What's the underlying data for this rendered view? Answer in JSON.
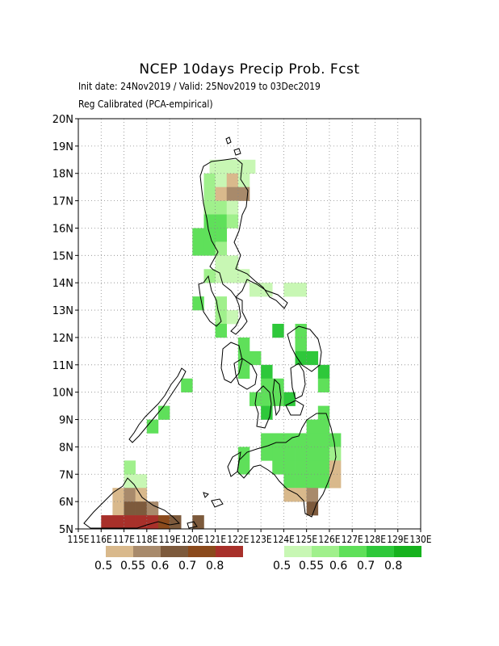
{
  "title": "NCEP 10days Precip Prob. Fcst",
  "subtitle1": "Init date: 24Nov2019 / Valid: 25Nov2019 to 03Dec2019",
  "subtitle2": "Reg Calibrated (PCA-empirical)",
  "lat_labels": [
    "5N",
    "6N",
    "7N",
    "8N",
    "9N",
    "10N",
    "11N",
    "12N",
    "13N",
    "14N",
    "15N",
    "16N",
    "17N",
    "18N",
    "19N",
    "20N"
  ],
  "lon_labels": [
    "115E",
    "116E",
    "117E",
    "118E",
    "119E",
    "120E",
    "121E",
    "122E",
    "123E",
    "124E",
    "125E",
    "126E",
    "127E",
    "128E",
    "129E",
    "130E"
  ],
  "dry_legend": {
    "colors": [
      "#d9b98c",
      "#a88a6b",
      "#7d5a3c",
      "#8b4a1c",
      "#a8302a"
    ],
    "labels": [
      "0.5",
      "0.55",
      "0.6",
      "0.7",
      "0.8"
    ]
  },
  "wet_legend": {
    "colors": [
      "#c8f7b4",
      "#a0f08c",
      "#5fe05a",
      "#2ec83a",
      "#16b21e"
    ],
    "labels": [
      "0.5",
      "0.55",
      "0.6",
      "0.7",
      "0.8"
    ]
  },
  "chart_data": {
    "type": "heatmap",
    "x_range": [
      115,
      130
    ],
    "y_range": [
      5,
      20
    ],
    "cell_size_deg": 0.5,
    "cells": [
      [
        122.5,
        18.25,
        "w1"
      ],
      [
        122.0,
        18.25,
        "w1"
      ],
      [
        121.5,
        18.25,
        "w1"
      ],
      [
        121.0,
        18.25,
        "w1"
      ],
      [
        120.75,
        17.75,
        "w2"
      ],
      [
        121.25,
        17.75,
        "w1"
      ],
      [
        121.75,
        17.75,
        "d1"
      ],
      [
        122.25,
        17.75,
        "w1"
      ],
      [
        120.75,
        17.25,
        "w2"
      ],
      [
        121.25,
        17.25,
        "d1"
      ],
      [
        121.75,
        17.25,
        "d2"
      ],
      [
        122.25,
        17.25,
        "d2"
      ],
      [
        120.75,
        16.75,
        "w2"
      ],
      [
        121.25,
        16.75,
        "w2"
      ],
      [
        121.75,
        16.75,
        "w1"
      ],
      [
        120.75,
        16.25,
        "w3"
      ],
      [
        121.25,
        16.25,
        "w3"
      ],
      [
        121.75,
        16.25,
        "w2"
      ],
      [
        120.25,
        15.75,
        "w3"
      ],
      [
        120.75,
        15.75,
        "w3"
      ],
      [
        121.25,
        15.75,
        "w3"
      ],
      [
        120.25,
        15.25,
        "w3"
      ],
      [
        120.75,
        15.25,
        "w3"
      ],
      [
        121.25,
        15.25,
        "w2"
      ],
      [
        121.25,
        14.75,
        "w1"
      ],
      [
        121.75,
        14.75,
        "w1"
      ],
      [
        121.25,
        14.25,
        "w1"
      ],
      [
        121.75,
        14.25,
        "w1"
      ],
      [
        122.25,
        14.25,
        "w1"
      ],
      [
        120.75,
        14.25,
        "w2"
      ],
      [
        122.75,
        13.75,
        "w1"
      ],
      [
        123.25,
        13.75,
        "w1"
      ],
      [
        124.25,
        13.75,
        "w1"
      ],
      [
        124.75,
        13.75,
        "w1"
      ],
      [
        120.25,
        13.25,
        "w3"
      ],
      [
        121.25,
        13.25,
        "w2"
      ],
      [
        121.25,
        12.75,
        "w2"
      ],
      [
        121.75,
        12.75,
        "w1"
      ],
      [
        121.25,
        12.25,
        "w3"
      ],
      [
        123.75,
        12.25,
        "w4"
      ],
      [
        124.75,
        12.25,
        "w3"
      ],
      [
        122.25,
        11.75,
        "w3"
      ],
      [
        124.75,
        11.75,
        "w3"
      ],
      [
        122.25,
        11.25,
        "w3"
      ],
      [
        122.75,
        11.25,
        "w3"
      ],
      [
        124.75,
        11.25,
        "w4"
      ],
      [
        125.25,
        11.25,
        "w4"
      ],
      [
        122.25,
        10.75,
        "w3"
      ],
      [
        123.25,
        10.75,
        "w4"
      ],
      [
        125.75,
        10.75,
        "w4"
      ],
      [
        123.25,
        10.25,
        "w3"
      ],
      [
        123.75,
        10.25,
        "w3"
      ],
      [
        125.75,
        10.25,
        "w3"
      ],
      [
        122.75,
        9.75,
        "w3"
      ],
      [
        123.25,
        9.75,
        "w3"
      ],
      [
        123.75,
        9.75,
        "w3"
      ],
      [
        124.25,
        9.75,
        "w4"
      ],
      [
        119.75,
        10.25,
        "w3"
      ],
      [
        118.75,
        9.25,
        "w3"
      ],
      [
        118.25,
        8.75,
        "w3"
      ],
      [
        123.25,
        9.25,
        "w4"
      ],
      [
        125.75,
        9.25,
        "w3"
      ],
      [
        125.25,
        8.75,
        "w3"
      ],
      [
        125.75,
        8.75,
        "w3"
      ],
      [
        123.25,
        8.25,
        "w3"
      ],
      [
        123.75,
        8.25,
        "w3"
      ],
      [
        124.25,
        8.25,
        "w3"
      ],
      [
        124.75,
        8.25,
        "w3"
      ],
      [
        125.25,
        8.25,
        "w3"
      ],
      [
        125.75,
        8.25,
        "w3"
      ],
      [
        126.25,
        8.25,
        "w3"
      ],
      [
        122.25,
        7.75,
        "w3"
      ],
      [
        123.25,
        7.75,
        "w3"
      ],
      [
        123.75,
        7.75,
        "w3"
      ],
      [
        124.25,
        7.75,
        "w3"
      ],
      [
        124.75,
        7.75,
        "w3"
      ],
      [
        125.25,
        7.75,
        "w3"
      ],
      [
        125.75,
        7.75,
        "w3"
      ],
      [
        126.25,
        7.75,
        "w2"
      ],
      [
        122.25,
        7.25,
        "w3"
      ],
      [
        123.75,
        7.25,
        "w3"
      ],
      [
        124.25,
        7.25,
        "w3"
      ],
      [
        124.75,
        7.25,
        "w3"
      ],
      [
        125.25,
        7.25,
        "w3"
      ],
      [
        125.75,
        7.25,
        "w3"
      ],
      [
        126.25,
        7.25,
        "d1"
      ],
      [
        124.25,
        6.75,
        "w3"
      ],
      [
        124.75,
        6.75,
        "w3"
      ],
      [
        125.25,
        6.75,
        "w3"
      ],
      [
        125.75,
        6.75,
        "w3"
      ],
      [
        126.25,
        6.75,
        "d1"
      ],
      [
        124.25,
        6.25,
        "d1"
      ],
      [
        124.75,
        6.25,
        "d1"
      ],
      [
        125.25,
        6.25,
        "d2"
      ],
      [
        125.25,
        5.75,
        "d3"
      ],
      [
        117.25,
        6.75,
        "w1"
      ],
      [
        117.75,
        6.75,
        "w1"
      ],
      [
        117.25,
        7.25,
        "w2"
      ],
      [
        116.75,
        6.25,
        "d1"
      ],
      [
        117.25,
        6.25,
        "d2"
      ],
      [
        117.75,
        6.25,
        "d1"
      ],
      [
        116.75,
        5.75,
        "d1"
      ],
      [
        117.25,
        5.75,
        "d3"
      ],
      [
        117.75,
        5.75,
        "d3"
      ],
      [
        118.25,
        5.75,
        "d2"
      ],
      [
        116.25,
        5.25,
        "d5"
      ],
      [
        116.75,
        5.25,
        "d5"
      ],
      [
        117.25,
        5.25,
        "d5"
      ],
      [
        117.75,
        5.25,
        "d5"
      ],
      [
        118.25,
        5.25,
        "d5"
      ],
      [
        118.75,
        5.25,
        "d4"
      ],
      [
        119.25,
        5.25,
        "d3"
      ],
      [
        120.25,
        5.25,
        "d3"
      ]
    ]
  }
}
